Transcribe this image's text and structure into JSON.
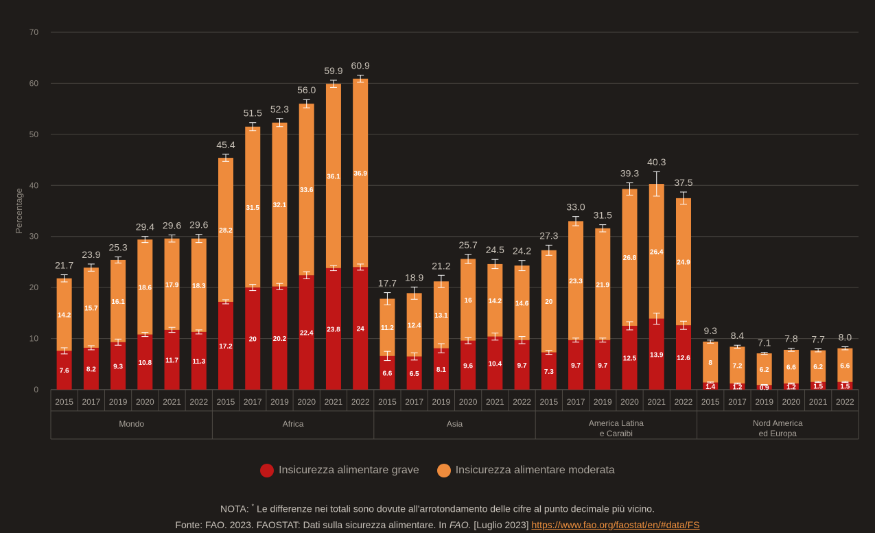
{
  "chart_data": {
    "type": "bar",
    "stacked": true,
    "ylabel": "Percentage",
    "ylim": [
      0,
      70
    ],
    "yticks": [
      0,
      10,
      20,
      30,
      40,
      50,
      60,
      70
    ],
    "grid": true,
    "colors": {
      "severe": "#c01717",
      "moderate": "#ee8b3c",
      "background": "#1f1c1a"
    },
    "groups": [
      {
        "name": "Mondo",
        "years": [
          "2015",
          "2017",
          "2019",
          "2020",
          "2021",
          "2022"
        ],
        "severe": [
          7.6,
          8.2,
          9.3,
          10.8,
          11.7,
          11.3
        ],
        "moderate": [
          14.2,
          15.7,
          16.1,
          18.6,
          17.9,
          18.3
        ],
        "totals": [
          "21.7",
          "23.9",
          "25.3",
          "29.4",
          "29.6",
          "29.6"
        ],
        "severe_err": [
          0.6,
          0.4,
          0.6,
          0.4,
          0.5,
          0.4
        ],
        "total_err": [
          0.7,
          0.7,
          0.6,
          0.6,
          0.7,
          0.8
        ]
      },
      {
        "name": "Africa",
        "years": [
          "2015",
          "2017",
          "2019",
          "2020",
          "2021",
          "2022"
        ],
        "severe": [
          17.2,
          20,
          20.2,
          22.4,
          23.8,
          24
        ],
        "moderate": [
          28.2,
          31.5,
          32.1,
          33.6,
          36.1,
          36.9
        ],
        "totals": [
          "45.4",
          "51.5",
          "52.3",
          "56.0",
          "59.9",
          "60.9"
        ],
        "severe_err": [
          0.4,
          0.6,
          0.6,
          0.7,
          0.5,
          0.6
        ],
        "total_err": [
          0.7,
          0.8,
          0.8,
          0.8,
          0.7,
          0.7
        ]
      },
      {
        "name": "Asia",
        "years": [
          "2015",
          "2017",
          "2019",
          "2020",
          "2021",
          "2022"
        ],
        "severe": [
          6.6,
          6.5,
          8.1,
          9.6,
          10.4,
          9.7
        ],
        "moderate": [
          11.2,
          12.4,
          13.1,
          16,
          14.2,
          14.6
        ],
        "totals": [
          "17.7",
          "18.9",
          "21.2",
          "25.7",
          "24.5",
          "24.2"
        ],
        "severe_err": [
          0.9,
          0.7,
          0.9,
          0.6,
          0.7,
          0.7
        ],
        "total_err": [
          1.2,
          1.2,
          1.2,
          0.9,
          0.9,
          1.0
        ]
      },
      {
        "name": "America Latina e Caraibi",
        "label_lines": [
          "America Latina",
          "e Caraibi"
        ],
        "years": [
          "2015",
          "2017",
          "2019",
          "2020",
          "2021",
          "2022"
        ],
        "severe": [
          7.3,
          9.7,
          9.7,
          12.5,
          13.9,
          12.6
        ],
        "moderate": [
          20,
          23.3,
          21.9,
          26.8,
          26.4,
          24.9
        ],
        "totals": [
          "27.3",
          "33.0",
          "31.5",
          "39.3",
          "40.3",
          "37.5"
        ],
        "severe_err": [
          0.4,
          0.4,
          0.4,
          0.8,
          1.1,
          0.8
        ],
        "total_err": [
          1.0,
          0.9,
          0.7,
          1.2,
          2.4,
          1.2
        ]
      },
      {
        "name": "Nord America ed Europa",
        "label_lines": [
          "Nord America",
          "ed Europa"
        ],
        "years": [
          "2015",
          "2017",
          "2019",
          "2020",
          "2021",
          "2022"
        ],
        "severe": [
          1.4,
          1.2,
          0.9,
          1.2,
          1.5,
          1.5
        ],
        "moderate": [
          8,
          7.2,
          6.2,
          6.6,
          6.2,
          6.6
        ],
        "totals": [
          "9.3",
          "8.4",
          "7.1",
          "7.8",
          "7.7",
          "8.0"
        ],
        "severe_err": [
          0.1,
          0.1,
          0.1,
          0.1,
          0.1,
          0.1
        ],
        "total_err": [
          0.3,
          0.3,
          0.2,
          0.3,
          0.3,
          0.3
        ]
      }
    ]
  },
  "legend": {
    "severe_label": "Insicurezza alimentare grave",
    "moderate_label": "Insicurezza alimentare moderata"
  },
  "footer": {
    "note_prefix": "NOTA:",
    "note_marker": "*",
    "note_text": "Le differenze nei totali sono dovute all'arrotondamento delle cifre al punto decimale più vicino.",
    "source_prefix": "Fonte: FAO. 2023. FAOSTAT: Dati sulla sicurezza alimentare. In",
    "source_italic": "FAO.",
    "source_date": "[Luglio 2023]",
    "source_link": "https://www.fao.org/faostat/en/#data/FS"
  }
}
